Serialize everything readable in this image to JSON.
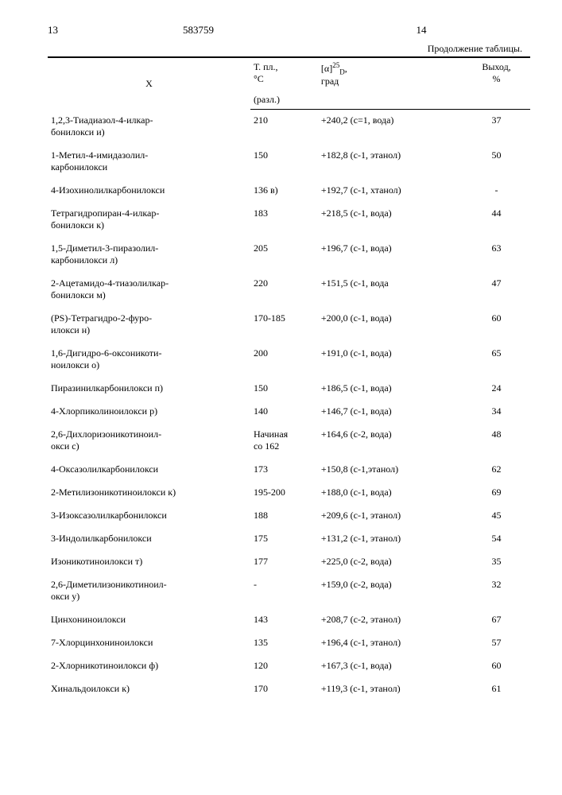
{
  "doc_number": "583759",
  "page_left": "13",
  "page_right": "14",
  "continuation_label": "Продолжение таблицы.",
  "columns": {
    "x": "X",
    "tp_line1": "Т. пл.,",
    "tp_line2": "°С",
    "tp_line3": "(разл.)",
    "rot_line1": "[α]",
    "rot_sup": "25",
    "rot_sub": "D",
    "rot_after": ",",
    "rot_line2": "град",
    "yield_line1": "Выход,",
    "yield_line2": "%"
  },
  "rows": [
    {
      "name": "1,2,3-Тиадиазол-4-илкар-\nбонилокси и)",
      "tp": "210",
      "rot": "+240,2 (с=1, вода)",
      "yield": "37"
    },
    {
      "name": "1-Метил-4-имидазолил-\nкарбонилокси",
      "tp": "150",
      "rot": "+182,8 (с-1, этанол)",
      "yield": "50"
    },
    {
      "name": "4-Изохинолилкарбонилокси",
      "tp": "136 в)",
      "rot": "+192,7 (с-1, хтанол)",
      "yield": "-"
    },
    {
      "name": "Тетрагидропиран-4-илкар-\nбонилокси к)",
      "tp": "183",
      "rot": "+218,5 (с-1, вода)",
      "yield": "44"
    },
    {
      "name": "1,5-Диметил-3-пиразолил-\nкарбонилокси л)",
      "tp": "205",
      "rot": "+196,7 (с-1, вода)",
      "yield": "63"
    },
    {
      "name": "2-Ацетамидо-4-тиазолилкар-\nбонилокси м)",
      "tp": "220",
      "rot": "+151,5 (с-1, вода",
      "yield": "47"
    },
    {
      "name": "(РS)-Тетрагидро-2-фуро-\nилокси н)",
      "tp": "170-185",
      "rot": "+200,0 (с-1, вода)",
      "yield": "60"
    },
    {
      "name": "1,6-Дигидро-6-оксоникоти-\nноилокси о)",
      "tp": "200",
      "rot": "+191,0 (с-1, вода)",
      "yield": "65"
    },
    {
      "name": "Пиразинилкарбонилокси п)",
      "tp": "150",
      "rot": "+186,5 (с-1, вода)",
      "yield": "24"
    },
    {
      "name": "4-Хлорпиколиноилокси р)",
      "tp": "140",
      "rot": "+146,7 (с-1, вода)",
      "yield": "34"
    },
    {
      "name": "2,6-Дихлоризоникотиноил-\nокси с)",
      "tp": "Начиная\nсо 162",
      "rot": "+164,6 (с-2, вода)",
      "yield": "48"
    },
    {
      "name": "4-Оксазолилкарбонилокси",
      "tp": "173",
      "rot": "+150,8 (с-1,этанол)",
      "yield": "62"
    },
    {
      "name": "2-Метилизоникотиноилокси к)",
      "tp": "195-200",
      "rot": "+188,0 (с-1, вода)",
      "yield": "69"
    },
    {
      "name": "3-Изоксазолилкарбонилокси",
      "tp": "188",
      "rot": "+209,6 (с-1, этанол)",
      "yield": "45"
    },
    {
      "name": "3-Индолилкарбонилокси",
      "tp": "175",
      "rot": "+131,2 (с-1, этанол)",
      "yield": "54"
    },
    {
      "name": "Изоникотиноилокси т)",
      "tp": "177",
      "rot": "+225,0 (с-2, вода)",
      "yield": "35"
    },
    {
      "name": "2,6-Диметилизоникотиноил-\nокси у)",
      "tp": "-",
      "rot": "+159,0 (с-2, вода)",
      "yield": "32"
    },
    {
      "name": "Цинхониноилокси",
      "tp": "143",
      "rot": "+208,7 (с-2, этанол)",
      "yield": "67"
    },
    {
      "name": "7-Хлорцинхониноилокси",
      "tp": "135",
      "rot": "+196,4 (с-1, этанол)",
      "yield": "57"
    },
    {
      "name": "2-Хлорникотиноилокси ф)",
      "tp": "120",
      "rot": "+167,3 (с-1, вода)",
      "yield": "60"
    },
    {
      "name": "Хинальдоилокси к)",
      "tp": "170",
      "rot": "+119,3 (с-1, этанол)",
      "yield": "61"
    }
  ]
}
